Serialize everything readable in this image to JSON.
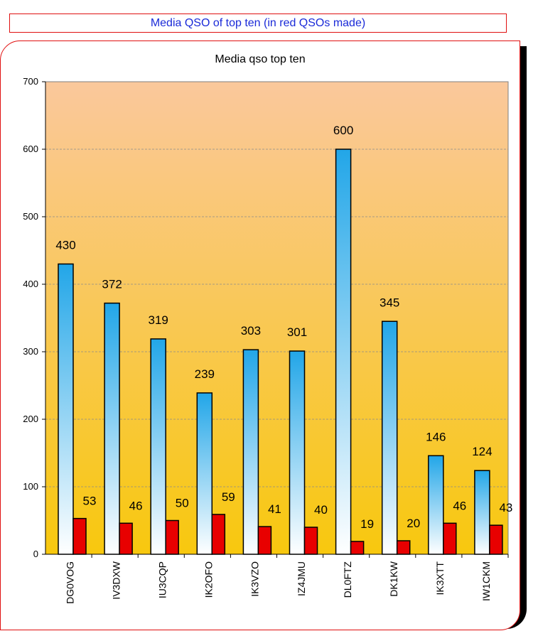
{
  "banner": {
    "text": "Media QSO of top ten (in red QSOs made)"
  },
  "chart_data": {
    "type": "bar",
    "title": "Media qso top ten",
    "xlabel": "",
    "ylabel": "",
    "categories": [
      "DG0VOG",
      "IV3DXW",
      "IU3CQP",
      "IK2OFO",
      "IK3VZO",
      "IZ4JMU",
      "DL0FTZ",
      "DK1KW",
      "IK3XTT",
      "IW1CKM"
    ],
    "series": [
      {
        "values": [
          430,
          372,
          319,
          239,
          303,
          301,
          600,
          345,
          146,
          124
        ]
      },
      {
        "values": [
          53,
          46,
          50,
          59,
          41,
          40,
          19,
          20,
          46,
          43
        ]
      }
    ],
    "ylim": [
      0,
      700
    ],
    "yticks": [
      0,
      100,
      200,
      300,
      400,
      500,
      600,
      700
    ],
    "grid": true,
    "colors": {
      "series1": "#22a6e8",
      "series2": "#e80000",
      "plot_bg_top": "#fac89c",
      "plot_bg_bottom": "#f8c80e"
    }
  }
}
